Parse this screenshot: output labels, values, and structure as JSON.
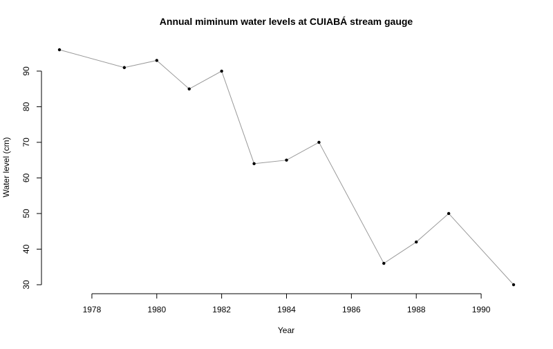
{
  "chart_data": {
    "type": "line",
    "title": "Annual miminum water levels at CUIABÁ stream gauge",
    "xlabel": "Year",
    "ylabel": "Water level (cm)",
    "xlim": [
      1977,
      1991
    ],
    "ylim": [
      30,
      96
    ],
    "x_ticks": [
      1978,
      1980,
      1982,
      1984,
      1986,
      1988,
      1990
    ],
    "y_ticks": [
      30,
      40,
      50,
      60,
      70,
      80,
      90
    ],
    "grid": false,
    "legend": "none",
    "series": [
      {
        "x": [
          1977,
          1979,
          1980,
          1981,
          1982,
          1983,
          1984,
          1985,
          1987,
          1988,
          1989,
          1991
        ],
        "y": [
          96,
          91,
          93,
          85,
          90,
          64,
          65,
          70,
          36,
          42,
          50,
          30
        ],
        "line_color": "#999999",
        "marker_color": "#000000"
      }
    ]
  }
}
